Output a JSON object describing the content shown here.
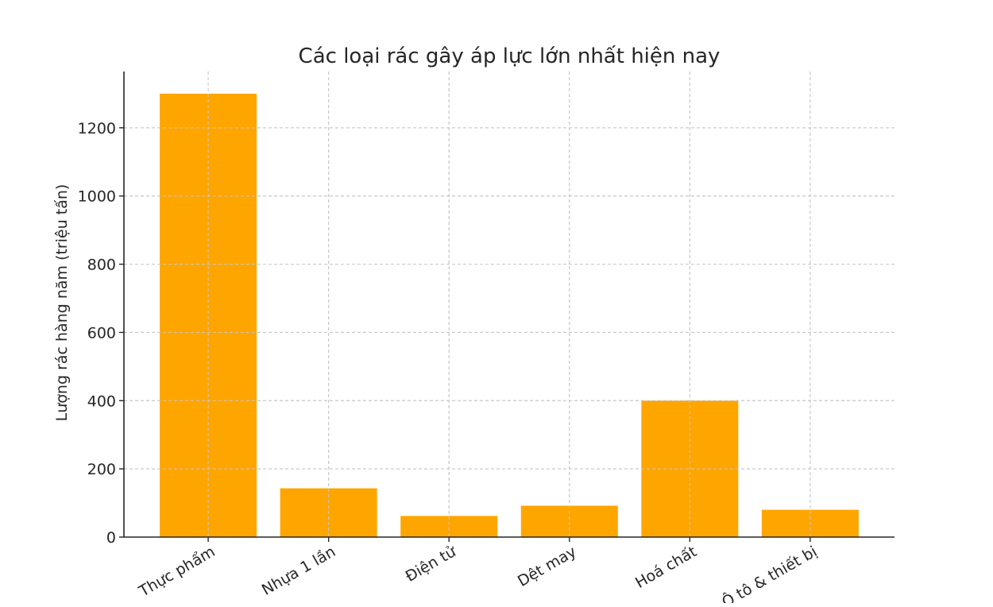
{
  "chart_data": {
    "type": "bar",
    "title": "Các loại rác gây áp lực lớn nhất hiện nay",
    "xlabel": "",
    "ylabel": "Lượng rác hàng năm (triệu tấn)",
    "categories": [
      "Thực phẩm",
      "Nhựa 1 lần",
      "Điện tử",
      "Dệt may",
      "Hoá chất",
      "Ô tô & thiết bị"
    ],
    "values": [
      1300,
      143,
      62,
      92,
      400,
      80
    ],
    "ylim": [
      0,
      1365
    ],
    "yticks": [
      0,
      200,
      400,
      600,
      800,
      1000,
      1200
    ],
    "grid": true,
    "bar_color": "#FFA500",
    "xtick_rotation": 30
  }
}
